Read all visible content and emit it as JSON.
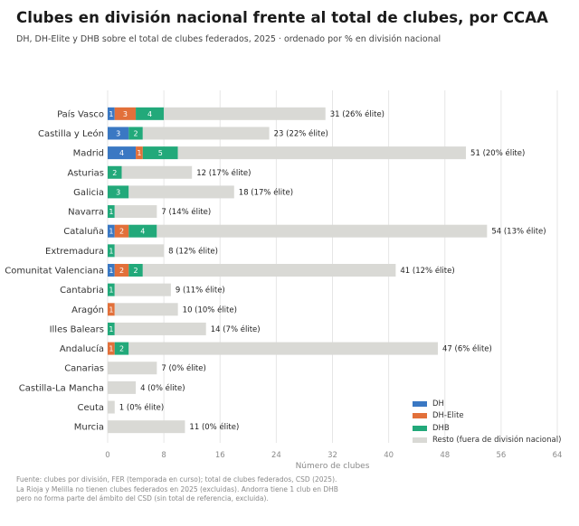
{
  "title": "Clubes en división nacional frente al total de clubes, por CCAA",
  "subtitle": "DH, DH-Elite y DHB sobre el total de clubes federados, 2025 · ordenado por % en división nacional",
  "footnote": [
    "Fuente: clubes por división, FER (temporada en curso); total de clubes federados, CSD (2025).",
    "La Rioja y Melilla no tienen clubes federados en 2025 (excluidas). Andorra tiene 1 club en DHB",
    "pero no forma parte del ámbito del CSD (sin total de referencia, excluida)."
  ],
  "colors": {
    "DH": "#3a78c3",
    "DH-Elite": "#e2703a",
    "DHB": "#22a97a",
    "Resto": "#d9d9d5"
  },
  "chart_data": {
    "type": "bar",
    "orientation": "horizontal",
    "stacked": true,
    "xlabel": "Número de clubes",
    "xlim": [
      0,
      64
    ],
    "xticks": [
      0,
      8,
      16,
      24,
      32,
      40,
      48,
      56,
      64
    ],
    "grid": "vertical",
    "legend_position": "bottom-right",
    "categories": [
      "País Vasco",
      "Castilla y León",
      "Madrid",
      "Asturias",
      "Galicia",
      "Navarra",
      "Cataluña",
      "Extremadura",
      "Comunitat Valenciana",
      "Cantabria",
      "Aragón",
      "Illes Balears",
      "Andalucía",
      "Canarias",
      "Castilla-La Mancha",
      "Ceuta",
      "Murcia"
    ],
    "series": [
      {
        "name": "DH",
        "values": [
          1,
          3,
          4,
          0,
          0,
          0,
          1,
          0,
          1,
          0,
          0,
          0,
          0,
          0,
          0,
          0,
          0
        ]
      },
      {
        "name": "DH-Elite",
        "values": [
          3,
          0,
          1,
          0,
          0,
          0,
          2,
          0,
          2,
          0,
          1,
          0,
          1,
          0,
          0,
          0,
          0
        ]
      },
      {
        "name": "DHB",
        "values": [
          4,
          2,
          5,
          2,
          3,
          1,
          4,
          1,
          2,
          1,
          0,
          1,
          2,
          0,
          0,
          0,
          0
        ]
      },
      {
        "name": "Resto (fuera de división nacional)",
        "values": [
          23,
          18,
          41,
          10,
          15,
          6,
          47,
          7,
          36,
          8,
          9,
          13,
          44,
          7,
          4,
          1,
          11
        ]
      }
    ],
    "totals": [
      31,
      23,
      51,
      12,
      18,
      7,
      54,
      8,
      41,
      9,
      10,
      14,
      47,
      7,
      4,
      1,
      11
    ],
    "annotations": [
      "31  (26% élite)",
      "23  (22% élite)",
      "51  (20% élite)",
      "12  (17% élite)",
      "18  (17% élite)",
      "7  (14% élite)",
      "54  (13% élite)",
      "8  (12% élite)",
      "41  (12% élite)",
      "9  (11% élite)",
      "10  (10% élite)",
      "14  (7% élite)",
      "47  (6% élite)",
      "7  (0% élite)",
      "4  (0% élite)",
      "1  (0% élite)",
      "11  (0% élite)"
    ]
  }
}
